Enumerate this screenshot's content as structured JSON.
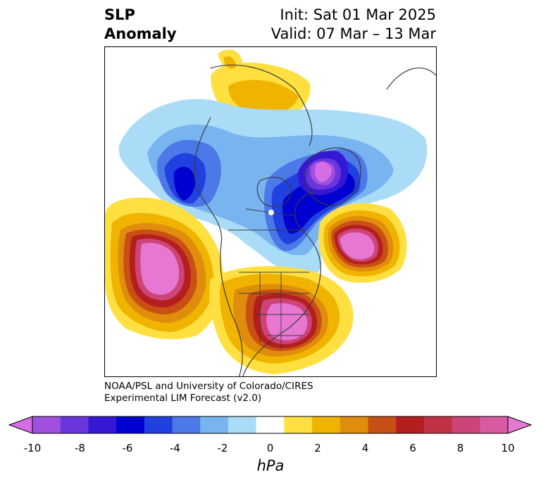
{
  "title": {
    "left_line1": "SLP",
    "left_line2": "Anomaly",
    "right_line1": "Init: Sat 01 Mar 2025",
    "right_line2": "Valid: 07 Mar – 13 Mar"
  },
  "credit": {
    "line1": "NOAA/PSL and University of Colorado/CIRES",
    "line2": "Experimental LIM Forecast (v2.0)"
  },
  "colorbar": {
    "units": "hPa",
    "ticks": [
      "-10",
      "-8",
      "-6",
      "-4",
      "-2",
      "0",
      "2",
      "4",
      "6",
      "8",
      "10"
    ],
    "colors": [
      "#d76de6",
      "#a050e0",
      "#6a35dc",
      "#3418d4",
      "#0000d0",
      "#2040e0",
      "#4c78e8",
      "#78b4f0",
      "#aadcf8",
      "#ffffff",
      "#ffe040",
      "#f0b400",
      "#e08c0c",
      "#c85014",
      "#b41e1e",
      "#c23246",
      "#cc4478",
      "#d85aa0",
      "#e678d2"
    ]
  },
  "map": {
    "anomalies": [
      {
        "region": "north-pacific-high",
        "sign": "positive",
        "peak": "+10 hPa"
      },
      {
        "region": "eastern-us-high",
        "sign": "positive",
        "peak": "+10 hPa"
      },
      {
        "region": "north-atlantic-high",
        "sign": "positive",
        "peak": "+10 hPa"
      },
      {
        "region": "greenland-arctic-low",
        "sign": "negative",
        "peak": "-10 hPa"
      },
      {
        "region": "gulf-of-alaska-low",
        "sign": "negative",
        "peak": "-6 hPa"
      },
      {
        "region": "hudson-bay-low",
        "sign": "negative",
        "peak": "-6 hPa"
      },
      {
        "region": "siberia-high",
        "sign": "positive",
        "peak": "+4 hPa"
      }
    ]
  }
}
